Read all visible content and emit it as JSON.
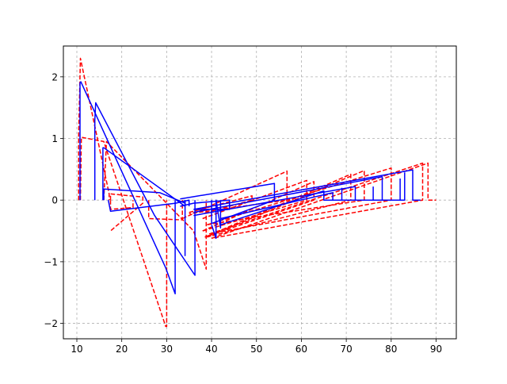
{
  "chart_data": {
    "type": "line",
    "title": "",
    "xlabel": "",
    "ylabel": "",
    "xlim": [
      7.0,
      94.5
    ],
    "ylim": [
      -2.25,
      2.5
    ],
    "xticks": [
      10,
      20,
      30,
      40,
      50,
      60,
      70,
      80,
      90
    ],
    "yticks": [
      -2,
      -1,
      0,
      1,
      2
    ],
    "xtick_labels": [
      "10",
      "20",
      "30",
      "40",
      "50",
      "60",
      "70",
      "80",
      "90"
    ],
    "ytick_labels": [
      "−2",
      "−1",
      "0",
      "1",
      "2"
    ],
    "grid": true,
    "legend": false,
    "series": [
      {
        "color": "#ff0000",
        "style": "dashed",
        "segments": [
          {
            "x": [
              10.4,
              10.4,
              10.8,
              17.2,
              17.2
            ],
            "y": [
              0.0,
              1.05,
              2.3,
              0.1,
              0.0
            ]
          },
          {
            "x": [
              10.8,
              11.0,
              16.0,
              29.8,
              30.0,
              30.0
            ],
            "y": [
              0.0,
              1.02,
              0.95,
              -2.05,
              -2.05,
              0.0
            ]
          },
          {
            "x": [
              16.0,
              16.6,
              36.0,
              38.8,
              38.8,
              38.8
            ],
            "y": [
              0.0,
              0.95,
              -0.5,
              -1.12,
              -0.2,
              0.0
            ]
          },
          {
            "x": [
              17.5,
              17.5,
              24.7,
              24.7,
              17.5
            ],
            "y": [
              0.0,
              0.1,
              0.05,
              -0.05,
              -0.5
            ]
          },
          {
            "x": [
              17.5,
              17.5,
              22.5,
              22.5
            ],
            "y": [
              0.0,
              -0.15,
              -0.12,
              0.0
            ]
          },
          {
            "x": [
              26.0,
              26.0,
              33.5,
              33.5
            ],
            "y": [
              0.0,
              -0.3,
              -0.32,
              0.0
            ]
          },
          {
            "x": [
              33.5,
              56.8,
              56.8,
              35.0
            ],
            "y": [
              -0.3,
              0.47,
              0.0,
              -0.22
            ]
          },
          {
            "x": [
              35.0,
              49.0,
              49.0,
              38.0
            ],
            "y": [
              -0.2,
              0.07,
              0.0,
              -0.22
            ]
          },
          {
            "x": [
              38.0,
              61.2,
              61.2,
              38.0
            ],
            "y": [
              -0.3,
              0.32,
              0.0,
              -0.5
            ]
          },
          {
            "x": [
              38.0,
              62.8,
              62.8,
              38.5
            ],
            "y": [
              -0.5,
              0.3,
              0.0,
              -0.6
            ]
          },
          {
            "x": [
              38.5,
              71.0,
              71.0,
              39.0
            ],
            "y": [
              -0.6,
              0.42,
              0.0,
              -0.6
            ]
          },
          {
            "x": [
              39.0,
              74.0,
              74.0,
              39.0
            ],
            "y": [
              -0.6,
              0.48,
              0.0,
              -0.4
            ]
          },
          {
            "x": [
              39.0,
              80.0,
              80.0,
              39.5
            ],
            "y": [
              -0.4,
              0.52,
              0.0,
              -0.55
            ]
          },
          {
            "x": [
              39.5,
              87.0,
              87.0,
              40.0
            ],
            "y": [
              -0.55,
              0.6,
              0.0,
              -0.62
            ]
          },
          {
            "x": [
              40.0,
              88.2,
              88.2,
              90.0
            ],
            "y": [
              -0.62,
              0.6,
              0.0,
              0.0
            ]
          }
        ]
      },
      {
        "color": "#0000ff",
        "style": "solid",
        "segments": [
          {
            "x": [
              10.7,
              10.7,
              10.9,
              29.8,
              31.9,
              31.9
            ],
            "y": [
              0.0,
              1.9,
              1.92,
              -1.1,
              -1.52,
              0.0
            ]
          },
          {
            "x": [
              14.0,
              14.0,
              14.2,
              27.3,
              36.3,
              36.3
            ],
            "y": [
              0.0,
              1.3,
              1.58,
              -0.25,
              -1.22,
              0.0
            ]
          },
          {
            "x": [
              15.8,
              15.8,
              16.0,
              34.1,
              34.1
            ],
            "y": [
              0.0,
              0.85,
              0.85,
              -0.1,
              0.0
            ]
          },
          {
            "x": [
              16.0,
              16.0,
              28.5,
              34.1,
              34.1,
              34.1
            ],
            "y": [
              0.0,
              0.18,
              0.12,
              -0.05,
              -0.9,
              0.0
            ]
          },
          {
            "x": [
              17.0,
              17.5,
              32.0,
              35.0,
              35.0
            ],
            "y": [
              0.0,
              -0.18,
              -0.05,
              0.0,
              -0.1
            ]
          },
          {
            "x": [
              33.0,
              36.0,
              44.0,
              44.0,
              36.0
            ],
            "y": [
              -0.1,
              -0.05,
              0.0,
              -0.15,
              -0.15
            ]
          },
          {
            "x": [
              33.0,
              54.0,
              54.0,
              40.0,
              40.0
            ],
            "y": [
              0.02,
              0.27,
              0.0,
              -0.38,
              0.0
            ]
          },
          {
            "x": [
              40.0,
              41.0,
              41.0,
              42.0,
              42.0
            ],
            "y": [
              -0.4,
              -0.62,
              0.0,
              -0.45,
              0.0
            ]
          },
          {
            "x": [
              42.0,
              65.0,
              65.0,
              82.0,
              82.0
            ],
            "y": [
              -0.4,
              0.15,
              0.0,
              0.0,
              0.35
            ]
          },
          {
            "x": [
              42.0,
              67.0,
              67.0,
              69.0,
              69.0
            ],
            "y": [
              -0.3,
              0.12,
              0.0,
              0.0,
              0.2
            ]
          },
          {
            "x": [
              36.0,
              72.0,
              72.0,
              76.0,
              76.0
            ],
            "y": [
              -0.25,
              0.22,
              0.0,
              0.0,
              0.22
            ]
          },
          {
            "x": [
              36.0,
              78.0,
              78.0,
              83.0,
              83.0
            ],
            "y": [
              -0.2,
              0.38,
              0.0,
              0.0,
              0.45
            ]
          },
          {
            "x": [
              36.0,
              84.8,
              84.8,
              86.5
            ],
            "y": [
              -0.15,
              0.49,
              0.0,
              0.0
            ]
          }
        ]
      }
    ]
  }
}
